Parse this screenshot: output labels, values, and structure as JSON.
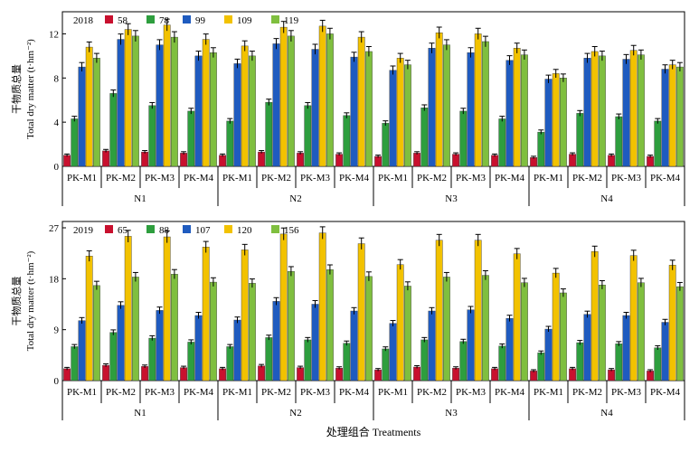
{
  "figure": {
    "xlabel": "处理组合 Treatments"
  },
  "chart_data": [
    {
      "type": "bar",
      "year_label": "2018",
      "ylabel_cn": "干物质总量",
      "ylabel_en": "Total dry matter (t·hm⁻²)",
      "ylim": [
        0,
        14
      ],
      "yticks": [
        "0",
        "4",
        "8",
        "12"
      ],
      "groups": [
        "N1",
        "N2",
        "N3",
        "N4"
      ],
      "categories": [
        "PK-M1",
        "PK-M2",
        "PK-M3",
        "PK-M4",
        "PK-M1",
        "PK-M2",
        "PK-M3",
        "PK-M4",
        "PK-M1",
        "PK-M2",
        "PK-M3",
        "PK-M4",
        "PK-M1",
        "PK-M2",
        "PK-M3",
        "PK-M4"
      ],
      "series": [
        {
          "name": "58",
          "color": "#c8102e",
          "values": [
            1.0,
            1.4,
            1.3,
            1.2,
            1.0,
            1.3,
            1.2,
            1.1,
            0.9,
            1.2,
            1.1,
            1.0,
            0.8,
            1.1,
            1.0,
            0.9
          ]
        },
        {
          "name": "78",
          "color": "#2e9e3e",
          "values": [
            4.3,
            6.6,
            5.5,
            5.0,
            4.1,
            5.8,
            5.5,
            4.6,
            3.9,
            5.3,
            5.0,
            4.3,
            3.1,
            4.8,
            4.5,
            4.1
          ]
        },
        {
          "name": "99",
          "color": "#1f5bbf",
          "values": [
            9.0,
            11.5,
            11.0,
            10.0,
            9.3,
            11.1,
            10.6,
            9.9,
            8.7,
            10.7,
            10.3,
            9.6,
            7.9,
            9.8,
            9.7,
            8.8
          ]
        },
        {
          "name": "109",
          "color": "#f2c200",
          "values": [
            10.8,
            12.4,
            12.8,
            11.5,
            10.9,
            12.6,
            12.7,
            11.7,
            9.8,
            12.1,
            12.0,
            10.7,
            8.4,
            10.4,
            10.5,
            9.2
          ]
        },
        {
          "name": "119",
          "color": "#7fbf3f",
          "values": [
            9.8,
            11.8,
            11.7,
            10.3,
            10.0,
            11.8,
            12.0,
            10.4,
            9.2,
            11.0,
            11.3,
            10.1,
            8.0,
            10.0,
            10.1,
            9.0
          ]
        }
      ]
    },
    {
      "type": "bar",
      "year_label": "2019",
      "ylabel_cn": "干物质总量",
      "ylabel_en": "Total dry matter (t·hm⁻²)",
      "ylim": [
        0,
        27
      ],
      "yticks": [
        "0",
        "9",
        "18",
        "27"
      ],
      "groups": [
        "N1",
        "N2",
        "N3",
        "N4"
      ],
      "categories": [
        "PK-M1",
        "PK-M2",
        "PK-M3",
        "PK-M4",
        "PK-M1",
        "PK-M2",
        "PK-M3",
        "PK-M4",
        "PK-M1",
        "PK-M2",
        "PK-M3",
        "PK-M4",
        "PK-M1",
        "PK-M2",
        "PK-M3",
        "PK-M4"
      ],
      "series": [
        {
          "name": "65",
          "color": "#c8102e",
          "values": [
            2.1,
            2.7,
            2.5,
            2.3,
            2.1,
            2.6,
            2.3,
            2.2,
            1.9,
            2.4,
            2.2,
            2.1,
            1.7,
            2.1,
            1.9,
            1.7
          ]
        },
        {
          "name": "88",
          "color": "#2e9e3e",
          "values": [
            6.0,
            8.5,
            7.5,
            6.8,
            6.0,
            7.6,
            7.2,
            6.6,
            5.6,
            7.2,
            6.9,
            6.1,
            4.9,
            6.7,
            6.5,
            5.8
          ]
        },
        {
          "name": "107",
          "color": "#1f5bbf",
          "values": [
            10.6,
            13.3,
            12.4,
            11.5,
            10.7,
            14.0,
            13.5,
            12.3,
            10.1,
            12.3,
            12.5,
            11.0,
            9.1,
            11.7,
            11.5,
            10.3
          ]
        },
        {
          "name": "120",
          "color": "#f2c200",
          "values": [
            22.0,
            25.5,
            25.4,
            23.6,
            23.1,
            25.9,
            26.1,
            24.2,
            20.5,
            24.8,
            24.8,
            22.4,
            19.0,
            22.8,
            22.1,
            20.4
          ]
        },
        {
          "name": "156",
          "color": "#7fbf3f",
          "values": [
            16.8,
            18.3,
            18.8,
            17.4,
            17.2,
            19.3,
            19.6,
            18.4,
            16.7,
            18.3,
            18.6,
            17.3,
            15.5,
            16.9,
            17.3,
            16.6
          ]
        }
      ]
    }
  ]
}
